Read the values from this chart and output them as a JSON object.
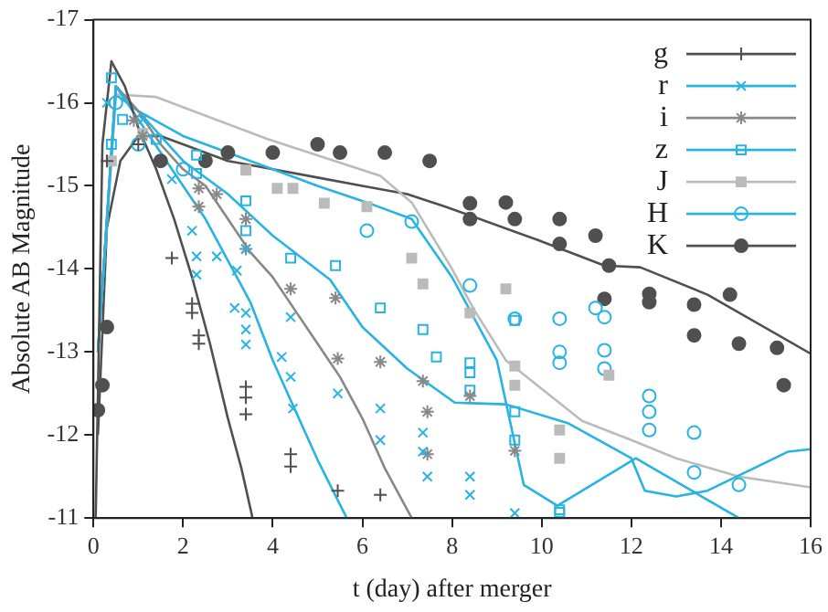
{
  "chart_data": {
    "type": "scatter",
    "xlabel": "t (day) after merger",
    "ylabel": "Absolute AB Magnitude",
    "xlim": [
      0,
      16
    ],
    "xticks": [
      0,
      2,
      4,
      6,
      8,
      10,
      12,
      14,
      16
    ],
    "ylim": [
      -11,
      -17
    ],
    "yticks": [
      -11,
      -12,
      -13,
      -14,
      -15,
      -16,
      -17
    ],
    "grid": false,
    "legend": "top right",
    "series": [
      {
        "name": "g",
        "color": "#505050",
        "marker": "plus",
        "x": [
          0.3,
          1.0,
          1.75,
          2.2,
          2.2,
          2.35,
          2.35,
          3.4,
          3.4,
          3.4,
          4.4,
          4.4,
          5.45,
          6.4
        ],
        "values": [
          -15.3,
          -15.5,
          -14.13,
          -13.58,
          -13.47,
          -13.2,
          -13.1,
          -12.58,
          -12.45,
          -12.25,
          -11.77,
          -11.62,
          -11.33,
          -11.28
        ]
      },
      {
        "name": "r",
        "color": "#27b4e3",
        "marker": "x",
        "x": [
          0.3,
          1.1,
          1.75,
          2.2,
          2.3,
          2.3,
          2.75,
          3.4,
          3.2,
          3.15,
          3.4,
          3.4,
          3.4,
          4.4,
          4.2,
          4.4,
          4.45,
          5.45,
          6.4,
          6.4,
          7.35,
          7.35,
          7.45,
          8.4,
          8.4,
          9.4
        ],
        "values": [
          -16.0,
          -15.8,
          -15.08,
          -14.46,
          -14.15,
          -13.93,
          -14.15,
          -14.24,
          -13.98,
          -13.53,
          -13.47,
          -13.27,
          -13.09,
          -13.42,
          -12.94,
          -12.7,
          -12.32,
          -12.5,
          -12.32,
          -11.94,
          -12.03,
          -11.8,
          -11.5,
          -11.5,
          -11.28,
          -11.06
        ]
      },
      {
        "name": "i",
        "color": "#888888",
        "marker": "cross",
        "x": [
          0.9,
          1.1,
          2.35,
          2.35,
          2.75,
          3.4,
          3.4,
          4.4,
          5.4,
          5.45,
          6.4,
          7.35,
          7.45,
          7.45,
          8.4,
          9.4
        ],
        "values": [
          -15.79,
          -15.6,
          -14.97,
          -14.75,
          -14.9,
          -14.6,
          -14.24,
          -13.76,
          -13.65,
          -12.92,
          -12.88,
          -12.65,
          -12.28,
          -11.77,
          -12.47,
          -11.81
        ]
      },
      {
        "name": "z",
        "color": "#27b4e3",
        "marker": "square",
        "x": [
          0.4,
          0.65,
          0.4,
          1.4,
          2.3,
          2.3,
          3.4,
          3.4,
          4.4,
          5.4,
          6.4,
          7.35,
          7.65,
          8.4,
          8.4,
          8.4,
          9.4,
          9.4,
          9.4,
          10.4,
          10.4
        ],
        "values": [
          -16.3,
          -15.8,
          -15.5,
          -15.56,
          -15.37,
          -15.15,
          -14.82,
          -14.46,
          -14.13,
          -14.04,
          -13.53,
          -13.27,
          -12.94,
          -12.87,
          -12.75,
          -12.54,
          -13.38,
          -12.28,
          -11.94,
          -11.1,
          -11.07
        ]
      },
      {
        "name": "J",
        "color": "#bbbbbb",
        "marker": "square-filled",
        "x": [
          0.4,
          1.1,
          3.4,
          4.1,
          4.45,
          5.15,
          6.1,
          7.1,
          7.35,
          8.4,
          9.2,
          9.4,
          9.4,
          10.4,
          10.4,
          11.5
        ],
        "values": [
          -15.3,
          -15.63,
          -15.19,
          -14.97,
          -14.97,
          -14.79,
          -14.75,
          -14.13,
          -13.82,
          -13.47,
          -13.76,
          -12.83,
          -12.6,
          -12.06,
          -11.72,
          -12.72
        ]
      },
      {
        "name": "H",
        "color": "#27b4e3",
        "marker": "circle",
        "x": [
          0.5,
          1.0,
          2.0,
          6.1,
          7.1,
          8.4,
          9.4,
          10.4,
          10.4,
          10.4,
          11.2,
          11.4,
          11.4,
          11.4,
          12.4,
          12.4,
          12.4,
          13.4,
          13.4,
          14.4
        ],
        "values": [
          -16.0,
          -15.5,
          -15.2,
          -14.46,
          -14.57,
          -13.8,
          -13.4,
          -13.4,
          -13.0,
          -12.87,
          -13.53,
          -13.42,
          -13.02,
          -12.8,
          -12.47,
          -12.28,
          -12.06,
          -12.03,
          -11.55,
          -11.4
        ]
      },
      {
        "name": "K",
        "color": "#505050",
        "marker": "circle-filled",
        "x": [
          0.1,
          0.2,
          0.3,
          1.5,
          2.5,
          3.0,
          4.0,
          5.0,
          5.5,
          6.5,
          7.5,
          8.4,
          8.4,
          9.2,
          9.4,
          10.4,
          10.4,
          11.2,
          11.5,
          11.4,
          12.4,
          12.4,
          13.4,
          13.4,
          14.2,
          14.4,
          15.25,
          15.4
        ],
        "values": [
          -12.3,
          -12.6,
          -13.3,
          -15.3,
          -15.3,
          -15.4,
          -15.4,
          -15.5,
          -15.4,
          -15.4,
          -15.3,
          -14.79,
          -14.6,
          -14.8,
          -14.6,
          -14.6,
          -14.3,
          -14.4,
          -14.04,
          -13.64,
          -13.7,
          -13.6,
          -13.57,
          -13.2,
          -13.69,
          -13.1,
          -13.05,
          -12.6
        ]
      },
      {
        "type": "line",
        "color": "#505050",
        "marker": "none",
        "x": [
          0.05,
          0.2,
          0.4,
          0.7,
          1.0,
          1.4,
          1.8,
          2.2,
          2.6,
          3.0,
          3.3,
          3.55
        ],
        "values": [
          -11.0,
          -15.5,
          -16.5,
          -16.2,
          -15.7,
          -15.2,
          -14.6,
          -13.9,
          -13.1,
          -12.2,
          -11.6,
          -11.0
        ]
      },
      {
        "type": "line",
        "color": "#27b4e3",
        "marker": "none",
        "x": [
          0.1,
          0.5,
          1,
          1.5,
          2,
          2.5,
          3,
          3.5,
          4,
          4.5,
          5,
          5.65
        ],
        "values": [
          -13.0,
          -16.2,
          -15.8,
          -15.4,
          -15.0,
          -14.6,
          -14.1,
          -13.6,
          -12.9,
          -12.3,
          -11.7,
          -11.0
        ]
      },
      {
        "type": "line",
        "color": "#888888",
        "marker": "none",
        "x": [
          0.1,
          0.5,
          1,
          1.5,
          2,
          2.5,
          3,
          3.5,
          4,
          4.5,
          5,
          5.5,
          6,
          6.5,
          7.1
        ],
        "values": [
          -13.0,
          -16.2,
          -15.9,
          -15.5,
          -15.2,
          -15.0,
          -14.6,
          -14.2,
          -13.9,
          -13.5,
          -13.1,
          -12.7,
          -12.2,
          -11.6,
          -11.0
        ]
      },
      {
        "type": "line",
        "color": "#27b4e3",
        "marker": "none",
        "x": [
          0.1,
          0.5,
          1,
          2,
          3,
          4,
          5.28,
          6,
          7,
          8.06,
          9.2,
          10.6,
          12,
          12.3,
          13,
          13.7,
          15.5,
          16
        ],
        "values": [
          -13.0,
          -16.2,
          -15.9,
          -15.3,
          -14.9,
          -14.4,
          -13.87,
          -13.3,
          -12.8,
          -12.39,
          -12.37,
          -12.14,
          -11.72,
          -11.33,
          -11.26,
          -11.33,
          -11.8,
          -11.83
        ]
      },
      {
        "type": "line",
        "color": "#bbbbbb",
        "marker": "none",
        "x": [
          0.1,
          0.5,
          1.4,
          3.9,
          6.4,
          7.1,
          8.0,
          8.5,
          9.2,
          10.9,
          12,
          13,
          14.4,
          16
        ],
        "values": [
          -13.0,
          -16.1,
          -16.07,
          -15.56,
          -15.12,
          -14.8,
          -14.0,
          -13.5,
          -12.9,
          -12.17,
          -11.94,
          -11.72,
          -11.5,
          -11.37
        ]
      },
      {
        "type": "line",
        "color": "#27b4e3",
        "marker": "none",
        "x": [
          0.1,
          0.5,
          1,
          2,
          3,
          4,
          5,
          6.1,
          7.1,
          8,
          9,
          9.6,
          10.35,
          12.1,
          14.4
        ],
        "values": [
          -13.0,
          -16.1,
          -15.9,
          -15.6,
          -15.4,
          -15.2,
          -15.0,
          -14.8,
          -14.6,
          -13.9,
          -12.9,
          -11.4,
          -11.15,
          -11.72,
          -11.0
        ]
      },
      {
        "type": "line",
        "color": "#505050",
        "marker": "none",
        "x": [
          0.1,
          0.3,
          0.6,
          1,
          1.5,
          2,
          3,
          4,
          5,
          6,
          7,
          7.85,
          9.9,
          11.4,
          12.2,
          13.7,
          16
        ],
        "values": [
          -12.0,
          -14.5,
          -15.3,
          -15.6,
          -15.6,
          -15.5,
          -15.3,
          -15.2,
          -15.1,
          -15.0,
          -14.9,
          -14.75,
          -14.35,
          -14.04,
          -14.02,
          -13.69,
          -12.98
        ]
      }
    ]
  }
}
